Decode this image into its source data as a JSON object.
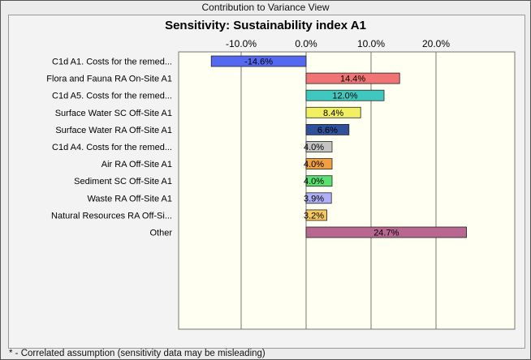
{
  "window": {
    "title": "Contribution to Variance View"
  },
  "footnote": "* - Correlated assumption (sensitivity data may be misleading)",
  "chart_data": {
    "type": "bar",
    "orientation": "horizontal",
    "title": "Sensitivity: Sustainability index A1",
    "xlim": [
      -20,
      30
    ],
    "xticks": [
      -10,
      0,
      10,
      20
    ],
    "xtick_labels": [
      "-10.0%",
      "0.0%",
      "10.0%",
      "20.0%"
    ],
    "grid": true,
    "categories": [
      "C1d A1. Costs for the remed...",
      "Flora and Fauna RA On-Site A1",
      "C1d A5. Costs for the remed...",
      "Surface Water SC Off-Site A1",
      "Surface Water RA Off-Site A1",
      "C1d A4. Costs for the remed...",
      "Air RA Off-Site A1",
      "Sediment SC Off-Site A1",
      "Waste RA Off-Site A1",
      "Natural Resources RA Off-Si...",
      "Other"
    ],
    "values": [
      -14.6,
      14.4,
      12.0,
      8.4,
      6.6,
      4.0,
      4.0,
      4.0,
      3.9,
      3.2,
      24.7
    ],
    "value_labels": [
      "-14.6%",
      "14.4%",
      "12.0%",
      "8.4%",
      "6.6%",
      "4.0%",
      "4.0%",
      "4.0%",
      "3.9%",
      "3.2%",
      "24.7%"
    ],
    "colors": [
      "#5468f0",
      "#f07474",
      "#40c8c0",
      "#f0f060",
      "#30509a",
      "#c4c4c4",
      "#f0a040",
      "#58e070",
      "#b0b0f8",
      "#f8c860",
      "#b86890"
    ]
  }
}
